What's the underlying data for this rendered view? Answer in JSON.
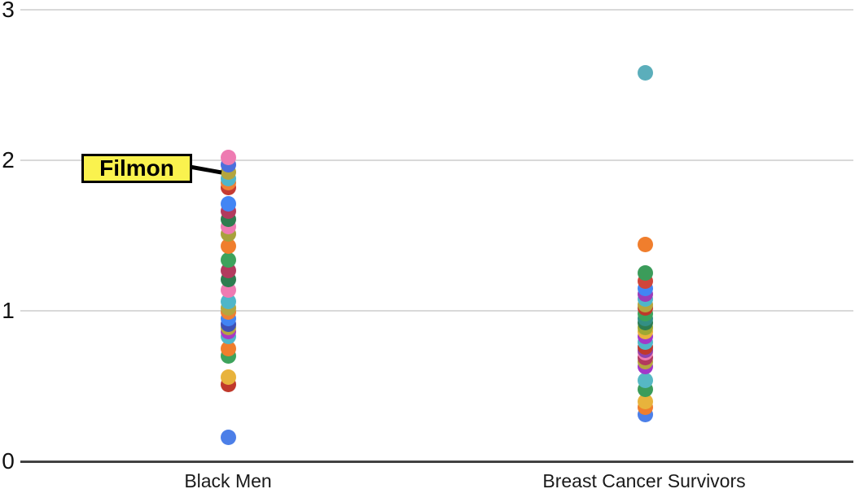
{
  "chart_data": {
    "type": "scatter",
    "subtype": "strip-plot",
    "title": "",
    "xlabel": "",
    "ylabel": "",
    "categories": [
      "Black Men",
      "Breast Cancer Survivors"
    ],
    "ylim": [
      0,
      3
    ],
    "yticks": [
      0,
      1,
      2,
      3
    ],
    "grid": true,
    "legend": "none",
    "annotation": {
      "label": "Filmon",
      "target_category": "Black Men",
      "target_value": 1.92,
      "box_fill": "#faf24e",
      "box_border": "#000000"
    },
    "series": [
      {
        "name": "Black Men",
        "points": [
          {
            "value": 2.02,
            "color": "#EE7BB2"
          },
          {
            "value": 1.97,
            "color": "#4C6FDC"
          },
          {
            "value": 1.92,
            "color": "#B3A53E"
          },
          {
            "value": 1.88,
            "color": "#4FB6C9"
          },
          {
            "value": 1.85,
            "color": "#EF8033"
          },
          {
            "value": 1.82,
            "color": "#C53B33"
          },
          {
            "value": 1.71,
            "color": "#4285F4"
          },
          {
            "value": 1.66,
            "color": "#B23A5E"
          },
          {
            "value": 1.61,
            "color": "#2E7D50"
          },
          {
            "value": 1.56,
            "color": "#EE7BB2"
          },
          {
            "value": 1.51,
            "color": "#A8A13C"
          },
          {
            "value": 1.43,
            "color": "#F07E2D"
          },
          {
            "value": 1.34,
            "color": "#3DA35C"
          },
          {
            "value": 1.27,
            "color": "#B23A5E"
          },
          {
            "value": 1.21,
            "color": "#2E7D50"
          },
          {
            "value": 1.14,
            "color": "#EE7BB2"
          },
          {
            "value": 1.06,
            "color": "#4FB6C9"
          },
          {
            "value": 1.02,
            "color": "#B5A63F"
          },
          {
            "value": 0.99,
            "color": "#EF8033"
          },
          {
            "value": 0.95,
            "color": "#4285F4"
          },
          {
            "value": 0.91,
            "color": "#3F51B5"
          },
          {
            "value": 0.89,
            "color": "#B5A63F"
          },
          {
            "value": 0.86,
            "color": "#A93BC4"
          },
          {
            "value": 0.83,
            "color": "#4FB6C9"
          },
          {
            "value": 0.75,
            "color": "#F07E2D"
          },
          {
            "value": 0.7,
            "color": "#3DA35C"
          },
          {
            "value": 0.56,
            "color": "#E8B33C"
          },
          {
            "value": 0.51,
            "color": "#C0392B"
          },
          {
            "value": 0.16,
            "color": "#4C7FE8"
          }
        ]
      },
      {
        "name": "Breast Cancer Survivors",
        "points": [
          {
            "value": 2.58,
            "color": "#5BAEBB"
          },
          {
            "value": 1.44,
            "color": "#F07E2D"
          },
          {
            "value": 1.25,
            "color": "#3B9C5A"
          },
          {
            "value": 1.2,
            "color": "#D0453A"
          },
          {
            "value": 1.15,
            "color": "#4285F4"
          },
          {
            "value": 1.11,
            "color": "#9C3DB8"
          },
          {
            "value": 1.08,
            "color": "#4FB6C9"
          },
          {
            "value": 1.04,
            "color": "#B5A63F"
          },
          {
            "value": 1.02,
            "color": "#C0392B"
          },
          {
            "value": 0.98,
            "color": "#3DA35C"
          },
          {
            "value": 0.95,
            "color": "#338F84"
          },
          {
            "value": 0.92,
            "color": "#2E7D50"
          },
          {
            "value": 0.89,
            "color": "#9FA832"
          },
          {
            "value": 0.86,
            "color": "#E8B33C"
          },
          {
            "value": 0.83,
            "color": "#A238C8"
          },
          {
            "value": 0.79,
            "color": "#4FB6C9"
          },
          {
            "value": 0.76,
            "color": "#C0392B"
          },
          {
            "value": 0.74,
            "color": "#8E44AD"
          },
          {
            "value": 0.72,
            "color": "#EE7BB2"
          },
          {
            "value": 0.69,
            "color": "#B23A5E"
          },
          {
            "value": 0.66,
            "color": "#B5A63F"
          },
          {
            "value": 0.63,
            "color": "#A238C8"
          },
          {
            "value": 0.54,
            "color": "#56B8C4"
          },
          {
            "value": 0.48,
            "color": "#3B9C5A"
          },
          {
            "value": 0.4,
            "color": "#E8B33C"
          },
          {
            "value": 0.36,
            "color": "#F07E2D"
          },
          {
            "value": 0.31,
            "color": "#4C7FE8"
          }
        ]
      }
    ]
  },
  "colors": {
    "background": "#ffffff",
    "gridline": "#d9d9d9",
    "axis_line": "#424242",
    "tick_text": "#111111",
    "category_text": "#1a1a1a"
  }
}
